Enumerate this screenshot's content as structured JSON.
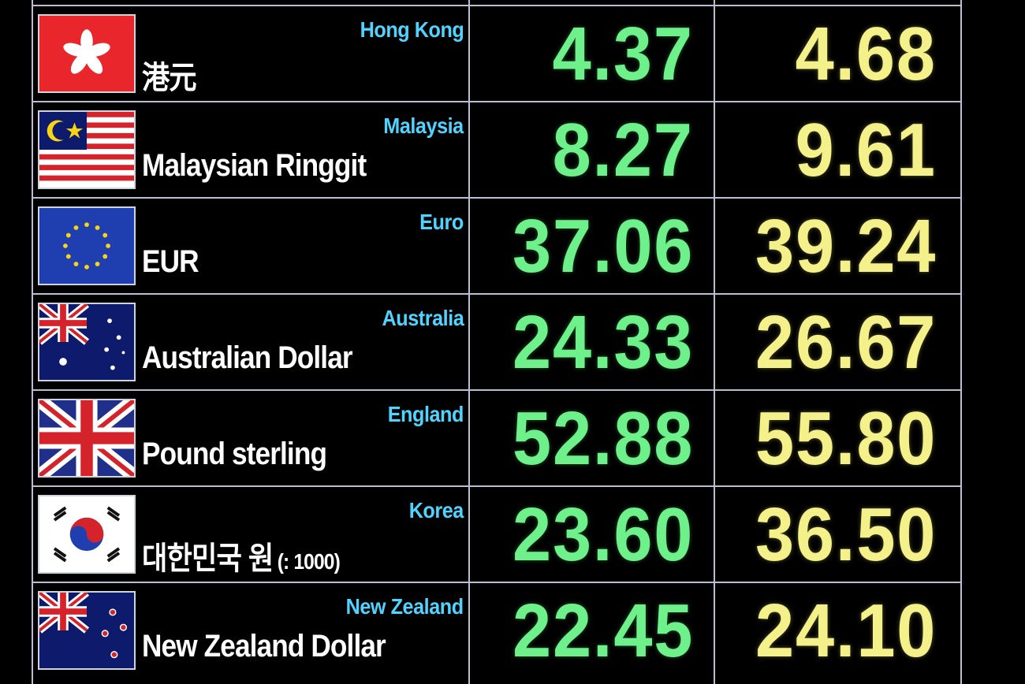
{
  "colors": {
    "background": "#000000",
    "grid": "#b9bfd0",
    "country_label": "#4fd3ff",
    "currency_label": "#ffffff",
    "buy_rate": "#6ef08a",
    "sell_rate": "#f4f08a"
  },
  "rows": [
    {
      "flag_icon": "hong-kong-flag-icon",
      "country": "Hong Kong",
      "currency": "港元",
      "note": "",
      "buy": "4.37",
      "sell": "4.68"
    },
    {
      "flag_icon": "malaysia-flag-icon",
      "country": "Malaysia",
      "currency": "Malaysian Ringgit",
      "note": "",
      "buy": "8.27",
      "sell": "9.61"
    },
    {
      "flag_icon": "eu-flag-icon",
      "country": "Euro",
      "currency": "EUR",
      "note": "",
      "buy": "37.06",
      "sell": "39.24"
    },
    {
      "flag_icon": "australia-flag-icon",
      "country": "Australia",
      "currency": "Australian Dollar",
      "note": "",
      "buy": "24.33",
      "sell": "26.67"
    },
    {
      "flag_icon": "uk-flag-icon",
      "country": "England",
      "currency": "Pound sterling",
      "note": "",
      "buy": "52.88",
      "sell": "55.80"
    },
    {
      "flag_icon": "south-korea-flag-icon",
      "country": "Korea",
      "currency": "대한민국 원",
      "note": "(: 1000)",
      "buy": "23.60",
      "sell": "36.50"
    },
    {
      "flag_icon": "new-zealand-flag-icon",
      "country": "New Zealand",
      "currency": "New Zealand Dollar",
      "note": "",
      "buy": "22.45",
      "sell": "24.10"
    }
  ]
}
